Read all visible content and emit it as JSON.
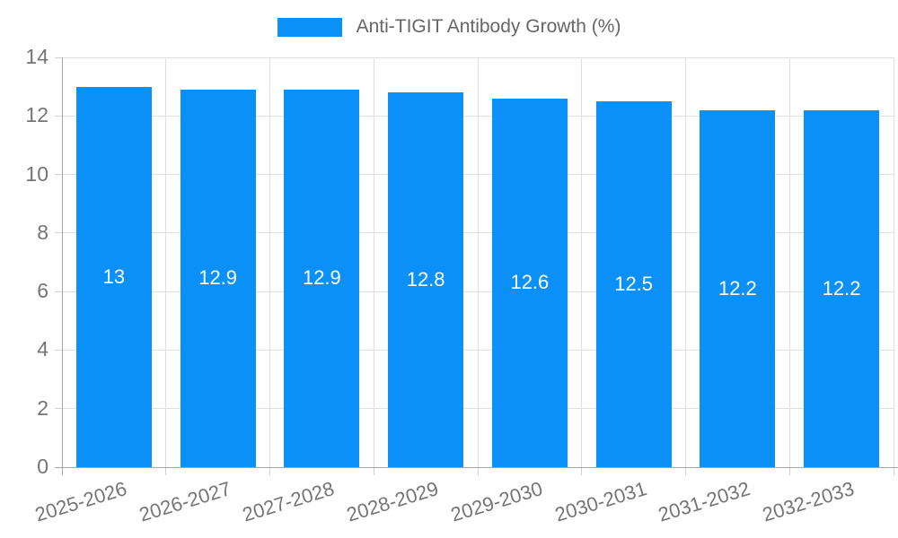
{
  "legend": {
    "label": "Anti-TIGIT Antibody Growth (%)"
  },
  "chart_data": {
    "type": "bar",
    "title": "Anti-TIGIT Antibody Growth (%)",
    "categories": [
      "2025-2026",
      "2026-2027",
      "2027-2028",
      "2028-2029",
      "2029-2030",
      "2030-2031",
      "2031-2032",
      "2032-2033"
    ],
    "values": [
      13,
      12.9,
      12.9,
      12.8,
      12.6,
      12.5,
      12.2,
      12.2
    ],
    "value_labels": [
      "13",
      "12.9",
      "12.9",
      "12.8",
      "12.6",
      "12.5",
      "12.2",
      "12.2"
    ],
    "xlabel": "",
    "ylabel": "",
    "ylim": [
      0,
      14
    ],
    "yticks": [
      0,
      2,
      4,
      6,
      8,
      10,
      12,
      14
    ],
    "grid": true,
    "legend_position": "top",
    "colors": {
      "bar": "#0b90f8",
      "value_label": "#ffffff",
      "gridline": "#e0e0e0",
      "axis_line": "#a6a6a6",
      "tick_mark": "#cfcfcf",
      "tick_text": "#757575",
      "legend_text": "#666666",
      "background": "#ffffff"
    }
  }
}
